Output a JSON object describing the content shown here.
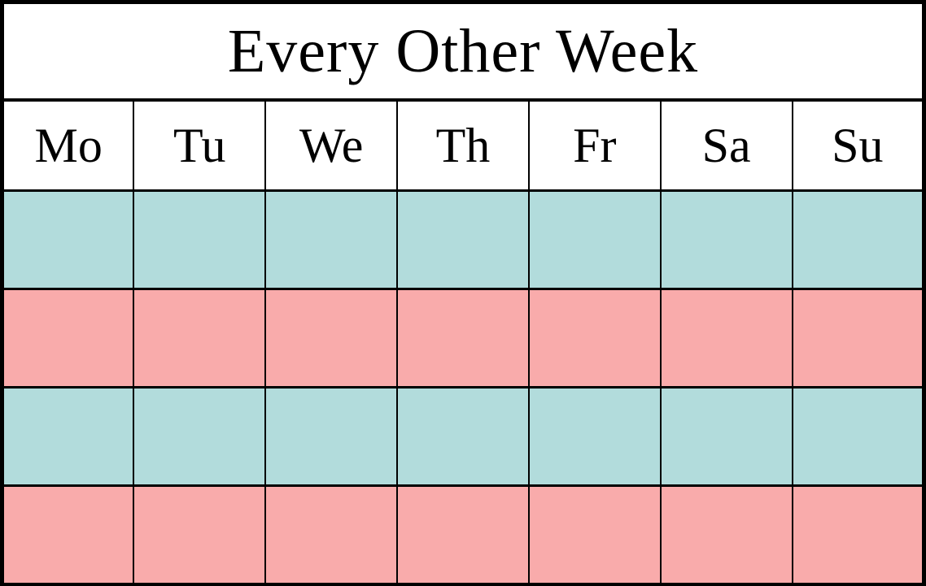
{
  "title": "Every Other Week",
  "day_headers": [
    "Mo",
    "Tu",
    "We",
    "Th",
    "Fr",
    "Sa",
    "Su"
  ],
  "week_rows": [
    {
      "name": "week-1",
      "color": "#B2DCDC"
    },
    {
      "name": "week-2",
      "color": "#F9ABAB"
    },
    {
      "name": "week-3",
      "color": "#B2DCDC"
    },
    {
      "name": "week-4",
      "color": "#F9ABAB"
    }
  ],
  "colors": {
    "week_teal": "#B2DCDC",
    "week_pink": "#F9ABAB",
    "border": "#000000",
    "background": "#FFFFFF",
    "text": "#000000"
  }
}
